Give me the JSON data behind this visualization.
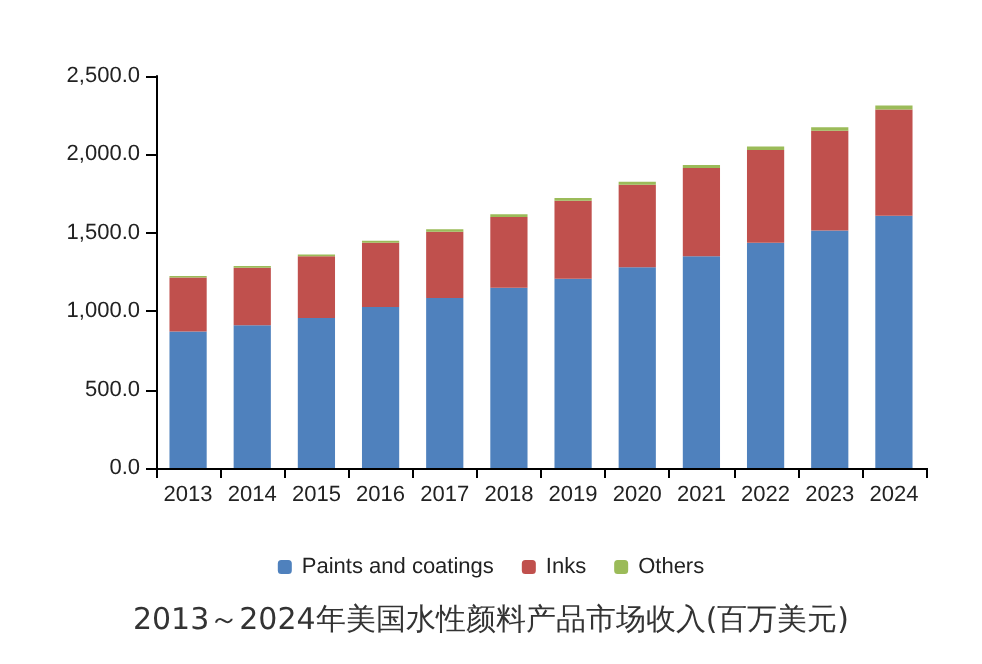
{
  "chart_data": {
    "type": "bar",
    "stacked": true,
    "title": "2013～2024年美国水性颜料产品市场收入(百万美元)",
    "categories": [
      "2013",
      "2014",
      "2015",
      "2016",
      "2017",
      "2018",
      "2019",
      "2020",
      "2021",
      "2022",
      "2023",
      "2024"
    ],
    "series": [
      {
        "name": "Paints and coatings",
        "color": "#4f81bd",
        "values": [
          870,
          911,
          956,
          1026,
          1084,
          1149,
          1207,
          1281,
          1351,
          1437,
          1515,
          1609
        ]
      },
      {
        "name": "Inks",
        "color": "#c0504d",
        "values": [
          345,
          366,
          394,
          411,
          423,
          452,
          497,
          525,
          562,
          591,
          636,
          678
        ]
      },
      {
        "name": "Others",
        "color": "#9bbb59",
        "values": [
          10,
          12,
          12,
          12,
          15,
          18,
          18,
          20,
          20,
          22,
          22,
          25
        ]
      }
    ],
    "ylim": [
      0,
      2500
    ],
    "yticks": [
      {
        "value": 0,
        "label": "0.0"
      },
      {
        "value": 500,
        "label": "500.0"
      },
      {
        "value": 1000,
        "label": "1,000.0"
      },
      {
        "value": 1500,
        "label": "1,500.0"
      },
      {
        "value": 2000,
        "label": "2,000.0"
      },
      {
        "value": 2500,
        "label": "2,500.0"
      }
    ],
    "grid": false,
    "legend": "bottom"
  }
}
